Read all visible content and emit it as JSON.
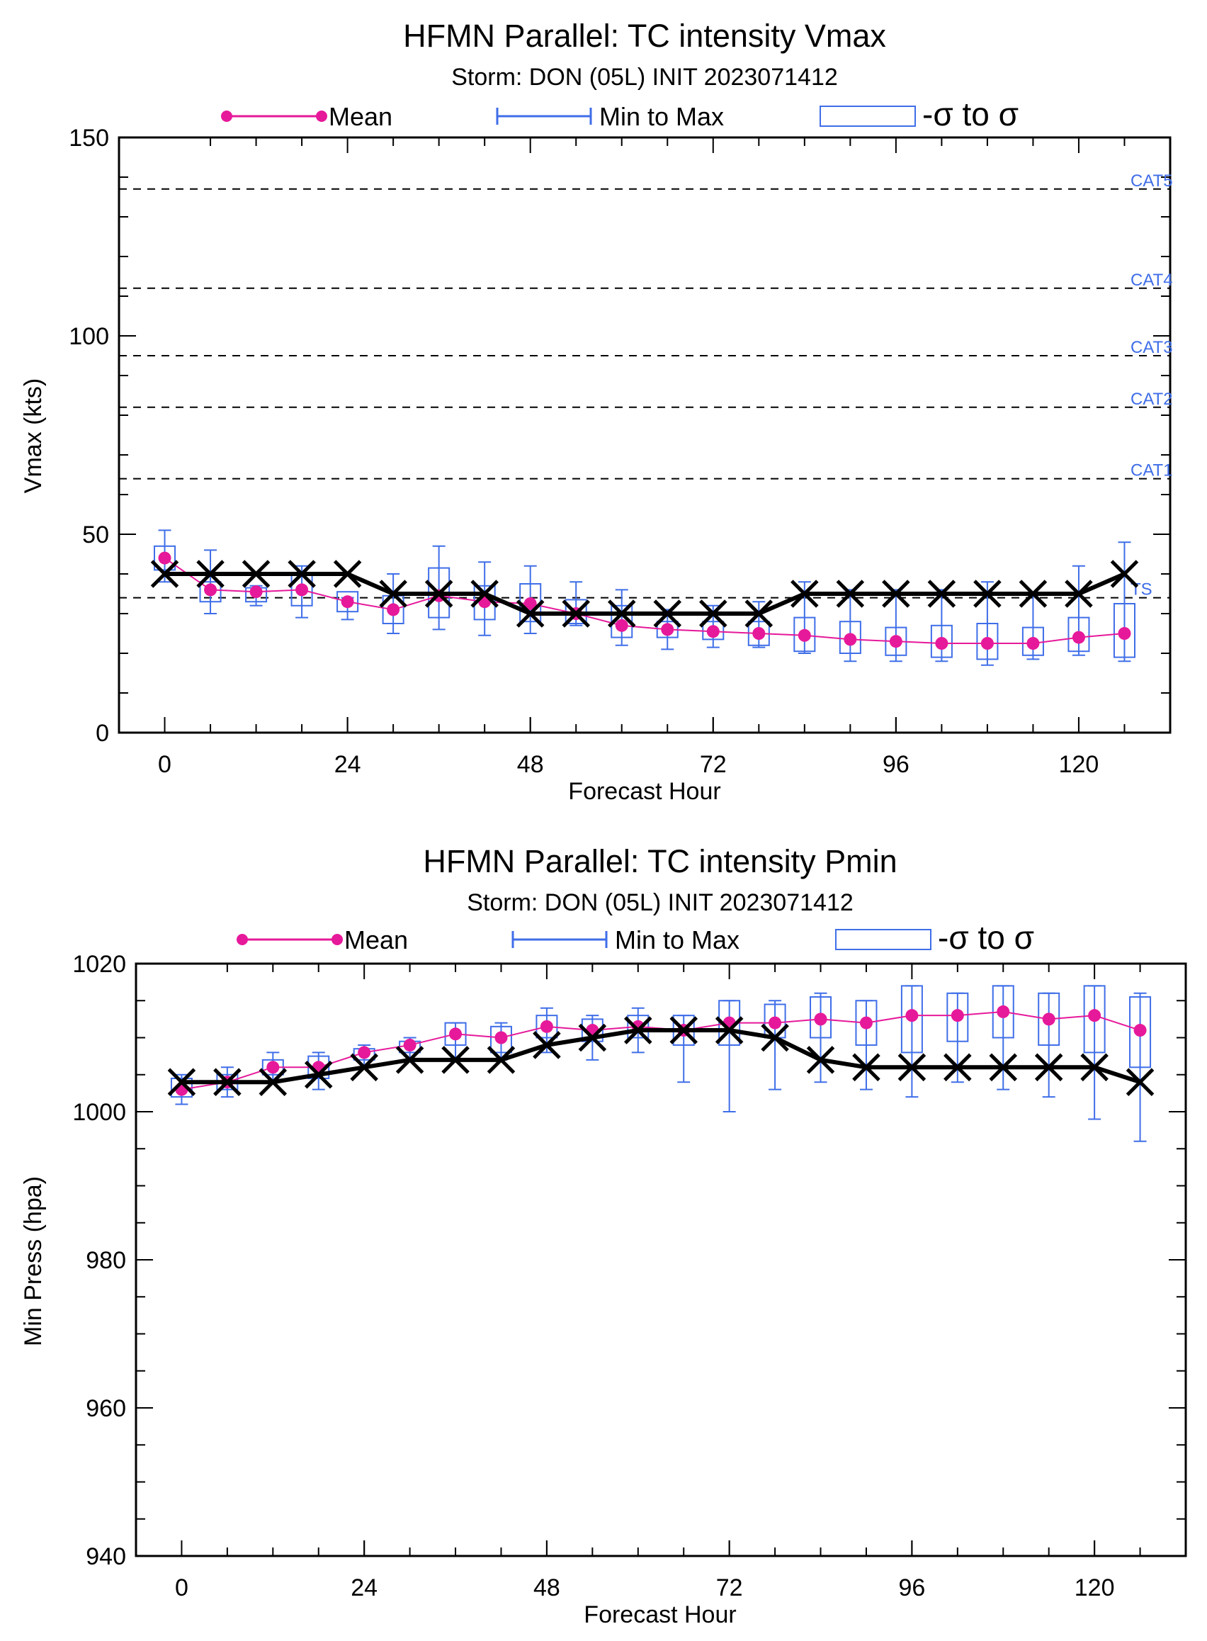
{
  "colors": {
    "mean": "#e6199a",
    "range": "#3f6ee8",
    "obs": "#000000",
    "cat_label": "#3f6ee8"
  },
  "legend": {
    "mean": "Mean",
    "range": "Min to Max",
    "sigma": "-σ to σ"
  },
  "chart_data": [
    {
      "type": "line",
      "title": "HFMN Parallel: TC intensity Vmax",
      "subtitle": "Storm: DON (05L) INIT 2023071412",
      "xlabel": "Forecast Hour",
      "ylabel": "Vmax (kts)",
      "xlim": [
        -6,
        132
      ],
      "ylim": [
        0,
        150
      ],
      "xticks": [
        0,
        24,
        48,
        72,
        96,
        120
      ],
      "yticks": [
        0,
        50,
        100,
        150
      ],
      "thresholds": [
        {
          "label": "TS",
          "value": 34
        },
        {
          "label": "CAT1",
          "value": 64
        },
        {
          "label": "CAT2",
          "value": 82
        },
        {
          "label": "CAT3",
          "value": 95
        },
        {
          "label": "CAT4",
          "value": 112
        },
        {
          "label": "CAT5",
          "value": 137
        }
      ],
      "x": [
        0,
        6,
        12,
        18,
        24,
        30,
        36,
        42,
        48,
        54,
        60,
        66,
        72,
        78,
        84,
        90,
        96,
        102,
        108,
        114,
        120,
        126
      ],
      "mean": [
        44,
        36,
        35.5,
        36,
        33,
        31,
        34.5,
        33,
        32.5,
        30,
        27,
        26,
        25.5,
        25,
        24.5,
        23.5,
        23,
        22.5,
        22.5,
        22.5,
        24,
        25
      ],
      "min": [
        38,
        30,
        32,
        29,
        28.5,
        25,
        26,
        24.5,
        25,
        27,
        22,
        21,
        21.5,
        21.5,
        20,
        18,
        18,
        18,
        17,
        18.5,
        19.5,
        18
      ],
      "max": [
        51,
        46,
        37,
        42,
        34,
        40,
        47,
        43,
        42,
        38,
        36,
        31,
        32,
        33,
        38,
        36,
        36,
        36,
        38,
        35,
        42,
        48
      ],
      "sigma_low": [
        41,
        33,
        33,
        32,
        30.5,
        27.5,
        29,
        28.5,
        28,
        27.5,
        24,
        24,
        23.5,
        22,
        20.5,
        20,
        19.5,
        19,
        18.5,
        19.5,
        20.5,
        19
      ],
      "sigma_high": [
        47,
        38,
        36.5,
        40,
        35.5,
        34.5,
        41.5,
        37,
        37.5,
        33.5,
        32,
        28,
        28,
        28,
        29,
        28,
        26.5,
        27,
        27.5,
        26.5,
        29,
        32.5
      ],
      "observed_x": [
        0,
        6,
        12,
        18,
        24,
        30,
        36,
        42,
        48,
        54,
        60,
        66,
        72,
        78,
        84,
        90,
        96,
        102,
        108,
        114,
        120,
        126
      ],
      "observed": [
        40,
        40,
        40,
        40,
        40,
        35,
        35,
        35,
        30,
        30,
        30,
        30,
        30,
        30,
        35,
        35,
        35,
        35,
        35,
        35,
        35,
        40
      ]
    },
    {
      "type": "line",
      "title": "HFMN Parallel: TC intensity Pmin",
      "subtitle": "Storm: DON (05L) INIT 2023071412",
      "xlabel": "Forecast Hour",
      "ylabel": "Min Press (hpa)",
      "xlim": [
        -6,
        132
      ],
      "ylim": [
        940,
        1020
      ],
      "xticks": [
        0,
        24,
        48,
        72,
        96,
        120
      ],
      "yticks": [
        940,
        960,
        980,
        1000,
        1020
      ],
      "x": [
        0,
        6,
        12,
        18,
        24,
        30,
        36,
        42,
        48,
        54,
        60,
        66,
        72,
        78,
        84,
        90,
        96,
        102,
        108,
        114,
        120,
        126
      ],
      "mean": [
        1003,
        1004,
        1006,
        1006,
        1008,
        1009,
        1010.5,
        1010,
        1011.5,
        1011,
        1011.5,
        1011,
        1012,
        1012,
        1012.5,
        1012,
        1013,
        1013,
        1013.5,
        1012.5,
        1013,
        1011
      ],
      "min": [
        1001,
        1002,
        1004,
        1003,
        1006,
        1007,
        1007,
        1007,
        1008,
        1007,
        1008,
        1004,
        1000,
        1003,
        1004,
        1003,
        1002,
        1004,
        1003,
        1002,
        999,
        996
      ],
      "max": [
        1005,
        1006,
        1008,
        1008,
        1009,
        1010,
        1012,
        1012,
        1014,
        1013,
        1014,
        1013,
        1015,
        1015,
        1016,
        1015,
        1017,
        1016,
        1017,
        1016,
        1017,
        1016
      ],
      "sigma_low": [
        1002,
        1003,
        1005,
        1004.5,
        1007,
        1008,
        1009,
        1008,
        1010,
        1009.5,
        1010,
        1009,
        1009,
        1010,
        1010,
        1009,
        1008,
        1009.5,
        1010,
        1009,
        1008,
        1006
      ],
      "sigma_high": [
        1004.5,
        1005,
        1007,
        1007.5,
        1008.5,
        1009.5,
        1012,
        1011.5,
        1013,
        1012.5,
        1013,
        1013,
        1015,
        1014.5,
        1015.5,
        1015,
        1017,
        1016,
        1017,
        1016,
        1017,
        1015.5
      ],
      "observed_x": [
        0,
        6,
        12,
        18,
        24,
        30,
        36,
        42,
        48,
        54,
        60,
        66,
        72,
        78,
        84,
        90,
        96,
        102,
        108,
        114,
        120,
        126
      ],
      "observed": [
        1004,
        1004,
        1004,
        1005,
        1006,
        1007,
        1007,
        1007,
        1009,
        1010,
        1011,
        1011,
        1011,
        1010,
        1007,
        1006,
        1006,
        1006,
        1006,
        1006,
        1006,
        1004
      ]
    }
  ]
}
